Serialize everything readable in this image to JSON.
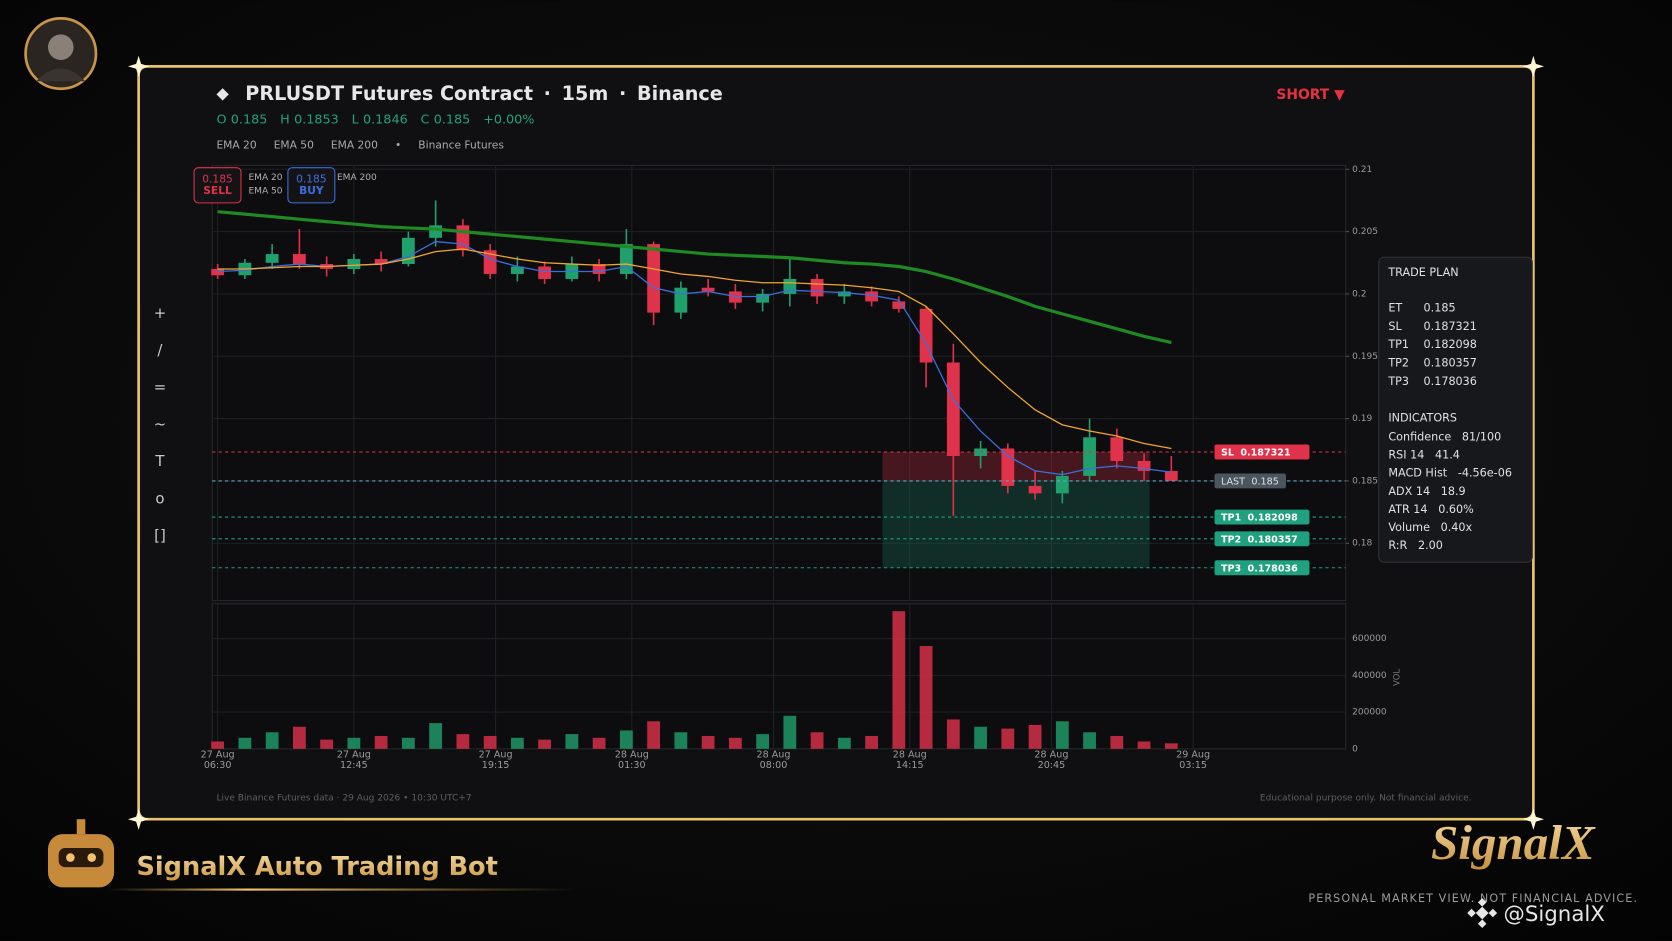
{
  "header": {
    "symbol": "PRLUSDT Futures Contract",
    "interval": "15m",
    "exchange": "Binance",
    "ohlc": [
      {
        "label": "O",
        "value": 0.185
      },
      {
        "label": "H",
        "value": 0.1853
      },
      {
        "label": "L",
        "value": 0.1846
      },
      {
        "label": "C",
        "value": 0.185
      }
    ],
    "change": "+0.00%",
    "source": "Binance Futures",
    "signal": "SHORT ▼"
  },
  "toolbar": [
    "+",
    "/",
    "=",
    "~",
    "T",
    "o",
    "[]"
  ],
  "quotes": [
    {
      "price": 0.185,
      "side": "SELL"
    },
    {
      "price": 0.185,
      "side": "BUY"
    }
  ],
  "chart_data": {
    "type": "candlestick",
    "candles": {
      "x": [
        0,
        5,
        10,
        15,
        20,
        25,
        30,
        35,
        40,
        45,
        50,
        55,
        60,
        65,
        70,
        75,
        80,
        85,
        90,
        95,
        100,
        105,
        110,
        115,
        120,
        125,
        130,
        135,
        140,
        145,
        150,
        155,
        160,
        165,
        170,
        175
      ],
      "open": [
        0.202,
        0.2015,
        0.2025,
        0.2032,
        0.2024,
        0.202,
        0.2028,
        0.2024,
        0.2045,
        0.2055,
        0.2035,
        0.2016,
        0.2022,
        0.2012,
        0.2024,
        0.2016,
        0.204,
        0.1985,
        0.2005,
        0.2002,
        0.1993,
        0.2,
        0.2012,
        0.1998,
        0.2002,
        0.1994,
        0.1988,
        0.1945,
        0.187,
        0.1876,
        0.1846,
        0.184,
        0.1854,
        0.1885,
        0.1866,
        0.1858
      ],
      "high": [
        0.2024,
        0.2028,
        0.204,
        0.2052,
        0.203,
        0.2032,
        0.2034,
        0.205,
        0.2075,
        0.206,
        0.204,
        0.203,
        0.2026,
        0.203,
        0.2028,
        0.2052,
        0.2042,
        0.201,
        0.2012,
        0.2008,
        0.2004,
        0.203,
        0.2016,
        0.2008,
        0.2006,
        0.1998,
        0.199,
        0.196,
        0.1882,
        0.188,
        0.1858,
        0.1858,
        0.19,
        0.1892,
        0.1872,
        0.187
      ],
      "low": [
        0.2012,
        0.2012,
        0.202,
        0.202,
        0.2014,
        0.2016,
        0.2018,
        0.2022,
        0.2038,
        0.203,
        0.2012,
        0.201,
        0.2008,
        0.201,
        0.201,
        0.2012,
        0.1975,
        0.198,
        0.1998,
        0.1988,
        0.1986,
        0.199,
        0.1992,
        0.1992,
        0.199,
        0.1985,
        0.1925,
        0.1822,
        0.186,
        0.184,
        0.1835,
        0.1832,
        0.185,
        0.186,
        0.185,
        0.185
      ],
      "close": [
        0.2015,
        0.2025,
        0.2032,
        0.2024,
        0.202,
        0.2028,
        0.2024,
        0.2045,
        0.2055,
        0.2035,
        0.2016,
        0.2022,
        0.2012,
        0.2024,
        0.2016,
        0.204,
        0.1985,
        0.2005,
        0.2002,
        0.1993,
        0.2,
        0.2012,
        0.1998,
        0.2002,
        0.1994,
        0.1988,
        0.1945,
        0.187,
        0.1876,
        0.1846,
        0.184,
        0.1854,
        0.1885,
        0.1866,
        0.1858,
        0.185
      ],
      "up_color": "#1fa06d",
      "down_color": "#e0324a"
    },
    "series": [
      {
        "name": "EMA 20",
        "color": "#3b6fe0",
        "width": 1.2,
        "values": [
          0.2018,
          0.2019,
          0.2022,
          0.2024,
          0.2022,
          0.2023,
          0.2024,
          0.203,
          0.2042,
          0.204,
          0.2028,
          0.2022,
          0.2018,
          0.2018,
          0.2018,
          0.2022,
          0.2005,
          0.2,
          0.2002,
          0.1998,
          0.1998,
          0.2003,
          0.2002,
          0.2001,
          0.1999,
          0.1995,
          0.196,
          0.1915,
          0.189,
          0.187,
          0.1858,
          0.1855,
          0.186,
          0.1862,
          0.186,
          0.1857
        ]
      },
      {
        "name": "EMA 50",
        "color": "#f2a52b",
        "width": 1.2,
        "values": [
          0.202,
          0.202,
          0.2021,
          0.2022,
          0.2022,
          0.2023,
          0.2024,
          0.2028,
          0.2034,
          0.2036,
          0.2032,
          0.2028,
          0.2025,
          0.2024,
          0.2023,
          0.2024,
          0.202,
          0.2016,
          0.2014,
          0.2011,
          0.2009,
          0.2009,
          0.2008,
          0.2007,
          0.2005,
          0.2002,
          0.199,
          0.1968,
          0.1945,
          0.1925,
          0.1907,
          0.1895,
          0.189,
          0.1886,
          0.188,
          0.1876
        ]
      },
      {
        "name": "EMA 200",
        "color": "#1f8a22",
        "width": 3,
        "values": [
          0.2066,
          0.2064,
          0.2062,
          0.206,
          0.2058,
          0.2056,
          0.2054,
          0.2053,
          0.2052,
          0.205,
          0.2048,
          0.2046,
          0.2044,
          0.2042,
          0.204,
          0.2038,
          0.2036,
          0.2034,
          0.2032,
          0.2031,
          0.203,
          0.2029,
          0.2027,
          0.2025,
          0.2024,
          0.2022,
          0.2018,
          0.2012,
          0.2005,
          0.1998,
          0.199,
          0.1984,
          0.1978,
          0.1972,
          0.1966,
          0.1961
        ]
      }
    ],
    "xlim": [
      -1,
      207
    ],
    "xticks": [
      {
        "value": 0,
        "label": "27 Aug 06:30"
      },
      {
        "value": 25,
        "label": "27 Aug 12:45"
      },
      {
        "value": 51,
        "label": "27 Aug 19:15"
      },
      {
        "value": 76,
        "label": "28 Aug 01:30"
      },
      {
        "value": 102,
        "label": "28 Aug 08:00"
      },
      {
        "value": 127,
        "label": "28 Aug 14:15"
      },
      {
        "value": 153,
        "label": "28 Aug 20:45"
      },
      {
        "value": 179,
        "label": "29 Aug 03:15"
      }
    ],
    "ylim": [
      0.1754,
      0.2103
    ],
    "yticks": [
      0.18,
      0.185,
      0.19,
      0.195,
      0.2,
      0.205,
      0.21
    ],
    "grid": true,
    "levels": [
      {
        "name": "SL",
        "value": 0.187321,
        "color": "#e0324a"
      },
      {
        "name": "LAST",
        "value": 0.185,
        "color": "#4a5560"
      },
      {
        "name": "TP1",
        "value": 0.182098,
        "color": "#1fa07e"
      },
      {
        "name": "TP2",
        "value": 0.180357,
        "color": "#1fa07e"
      },
      {
        "name": "TP3",
        "value": 0.178036,
        "color": "#1fa07e"
      }
    ],
    "trade_window": [
      122,
      171
    ],
    "volume": {
      "label": "VOL",
      "ylim": [
        0,
        790000
      ],
      "yticks": [
        0,
        200000,
        400000,
        600000
      ],
      "values": [
        40000,
        60000,
        90000,
        120000,
        50000,
        60000,
        70000,
        60000,
        140000,
        80000,
        70000,
        60000,
        50000,
        80000,
        60000,
        100000,
        150000,
        90000,
        70000,
        60000,
        80000,
        180000,
        90000,
        60000,
        70000,
        750000,
        560000,
        160000,
        120000,
        110000,
        130000,
        150000,
        90000,
        70000,
        40000,
        30000
      ]
    }
  },
  "trade_plan": {
    "title": "TRADE PLAN",
    "entries": [
      {
        "label": "ET",
        "value": 0.185
      },
      {
        "label": "SL",
        "value": 0.187321
      },
      {
        "label": "TP1",
        "value": 0.182098
      },
      {
        "label": "TP2",
        "value": 0.180357
      },
      {
        "label": "TP3",
        "value": 0.178036
      }
    ],
    "indicators_title": "INDICATORS",
    "indicators": [
      {
        "label": "Confidence",
        "value": "81/100"
      },
      {
        "label": "RSI 14",
        "value": 41.4
      },
      {
        "label": "MACD Hist",
        "value": "-4.56e-06"
      },
      {
        "label": "ADX 14",
        "value": 18.9
      },
      {
        "label": "ATR 14",
        "value": "0.60%"
      },
      {
        "label": "Volume",
        "value": "0.40x"
      },
      {
        "label": "R:R",
        "value": "2.00"
      }
    ]
  },
  "footer": {
    "left": "Live Binance Futures data  ·  29 Aug 2026 • 10:30 UTC+7",
    "right": "Educational purpose only. Not financial advice."
  },
  "branding": {
    "bot": "SignalX Auto Trading Bot",
    "logo": "SignalX",
    "tagline": "PERSONAL MARKET VIEW. NOT FINANCIAL ADVICE.",
    "handle": "@SignalX"
  }
}
